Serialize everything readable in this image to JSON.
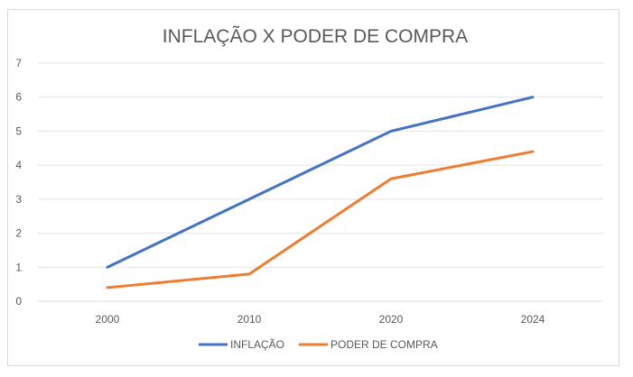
{
  "chart_data": {
    "type": "line",
    "title": "INFLAÇÃO X PODER DE COMPRA",
    "categories": [
      "2000",
      "2010",
      "2020",
      "2024"
    ],
    "ylim": [
      0,
      7
    ],
    "yticks": [
      0,
      1,
      2,
      3,
      4,
      5,
      6,
      7
    ],
    "grid": true,
    "legend_position": "bottom",
    "series": [
      {
        "name": "INFLAÇÃO",
        "color": "#4472c4",
        "values": [
          1,
          3,
          5,
          6
        ]
      },
      {
        "name": "PODER DE COMPRA",
        "color": "#ed7d31",
        "values": [
          0.4,
          0.8,
          3.6,
          4.4
        ]
      }
    ]
  }
}
